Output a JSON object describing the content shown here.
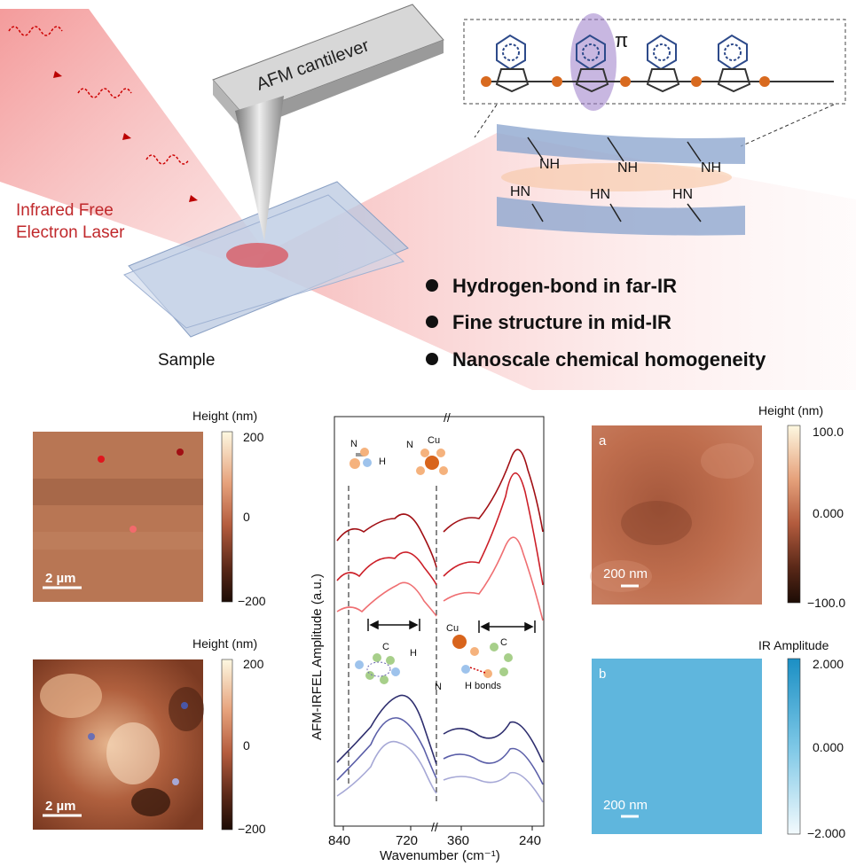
{
  "schematic": {
    "laser_label_line1": "Infrared Free",
    "laser_label_line2": "Electron Laser",
    "cantilever_label": "AFM cantilever",
    "sample_label": "Sample",
    "pi_symbol": "π",
    "nh_label": "NH",
    "hn_label": "HN",
    "bullets": [
      "Hydrogen-bond  in far-IR",
      "Fine structure in mid-IR",
      "Nanoscale chemical homogeneity"
    ]
  },
  "left_maps": [
    {
      "colorbar_title": "Height (nm)",
      "ticks": [
        "200",
        "0",
        "−200"
      ],
      "scalebar": "2 µm"
    },
    {
      "colorbar_title": "Height (nm)",
      "ticks": [
        "200",
        "0",
        "−200"
      ],
      "scalebar": "2 µm"
    }
  ],
  "right_maps": [
    {
      "panel": "a",
      "colorbar_title": "Height (nm)",
      "ticks": [
        "100.0",
        "0.000",
        "−100.0"
      ],
      "scalebar": "200 nm"
    },
    {
      "panel": "b",
      "colorbar_title": "IR Amplitude",
      "ticks": [
        "2.000",
        "0.000",
        "−2.000"
      ],
      "scalebar": "200 nm"
    }
  ],
  "spectrum": {
    "ylabel": "AFM-IRFEL Amplitude (a.u.)",
    "xlabel": "Wavenumber (cm⁻¹)",
    "xticks": [
      "840",
      "720",
      "360",
      "240"
    ],
    "break_mark": "//",
    "mol_labels": {
      "n1": "N",
      "h1": "H",
      "n2": "N",
      "cu2": "Cu",
      "c3": "C",
      "h3": "H",
      "cu4": "Cu",
      "c4": "C",
      "n4": "N",
      "hbonds": "H bonds"
    }
  },
  "colors": {
    "red_dark": "#a10f14",
    "red_mid": "#cc1f28",
    "red_light": "#ef6f72",
    "blue_dark": "#2e2e6e",
    "blue_mid": "#5a5ea8",
    "blue_light": "#a6a8d6",
    "laser_text": "#c0282b",
    "ir_blue": "#5fb6dd"
  }
}
